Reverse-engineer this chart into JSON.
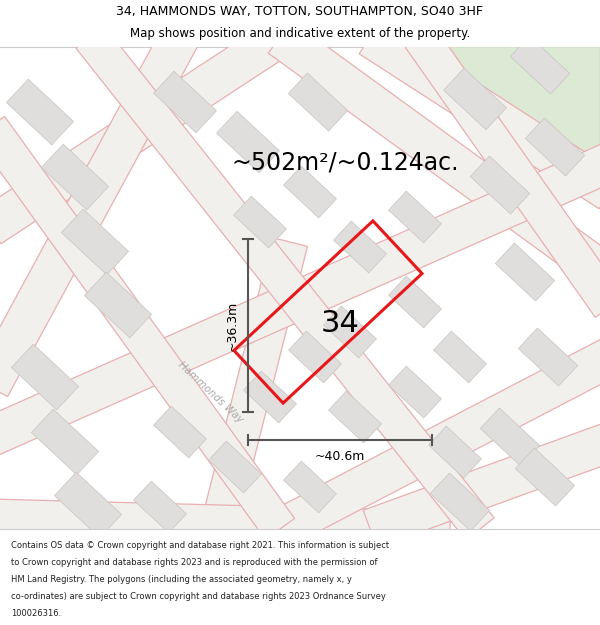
{
  "title_line1": "34, HAMMONDS WAY, TOTTON, SOUTHAMPTON, SO40 3HF",
  "title_line2": "Map shows position and indicative extent of the property.",
  "area_text": "~502m²/~0.124ac.",
  "property_number": "34",
  "width_label": "~40.6m",
  "height_label": "~36.3m",
  "street_label": "Hammonds Way",
  "footer_lines": [
    "Contains OS data © Crown copyright and database right 2021. This information is subject",
    "to Crown copyright and database rights 2023 and is reproduced with the permission of",
    "HM Land Registry. The polygons (including the associated geometry, namely x, y",
    "co-ordinates) are subject to Crown copyright and database rights 2023 Ordnance Survey",
    "100026316."
  ],
  "map_bg": "#f2f0ed",
  "green_color": "#dce9d5",
  "green_edge": "#c8d8bc",
  "road_fill": "#f2f0ed",
  "road_edge": "#e8b0b0",
  "building_fill": "#e0dedd",
  "building_edge": "#c8c4c0",
  "property_color": "#e8181a",
  "property_fill": "none",
  "dim_color": "#555555",
  "street_label_color": "#aaaaaa",
  "title_fontsize": 9.0,
  "subtitle_fontsize": 8.5,
  "area_fontsize": 17,
  "number_fontsize": 22,
  "dim_fontsize": 9,
  "street_fontsize": 7.5,
  "footer_fontsize": 6.0
}
